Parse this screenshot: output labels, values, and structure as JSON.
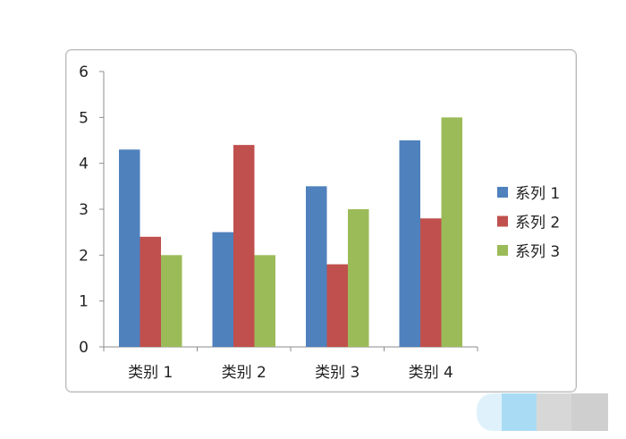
{
  "colors": {
    "series1": "#4f81bd",
    "series2": "#c0504d",
    "series3": "#9bbb59",
    "axis": "#8c8c8c",
    "frame": "#b9b9b9",
    "deco_light": "#dff1fb",
    "deco_blue": "#a9dcf4",
    "deco_gray1": "#d7d7d7",
    "deco_gray2": "#cfcfcf"
  },
  "chart_data": {
    "type": "bar",
    "categories": [
      "类别 1",
      "类别 2",
      "类别 3",
      "类别 4"
    ],
    "series": [
      {
        "name": "系列 1",
        "values": [
          4.3,
          2.5,
          3.5,
          4.5
        ]
      },
      {
        "name": "系列 2",
        "values": [
          2.4,
          4.4,
          1.8,
          2.8
        ]
      },
      {
        "name": "系列 3",
        "values": [
          2.0,
          2.0,
          3.0,
          5.0
        ]
      }
    ],
    "title": "",
    "xlabel": "",
    "ylabel": "",
    "ylim": [
      0,
      6
    ],
    "yticks": [
      0,
      1,
      2,
      3,
      4,
      5,
      6
    ],
    "grid": false,
    "legend_position": "right"
  }
}
